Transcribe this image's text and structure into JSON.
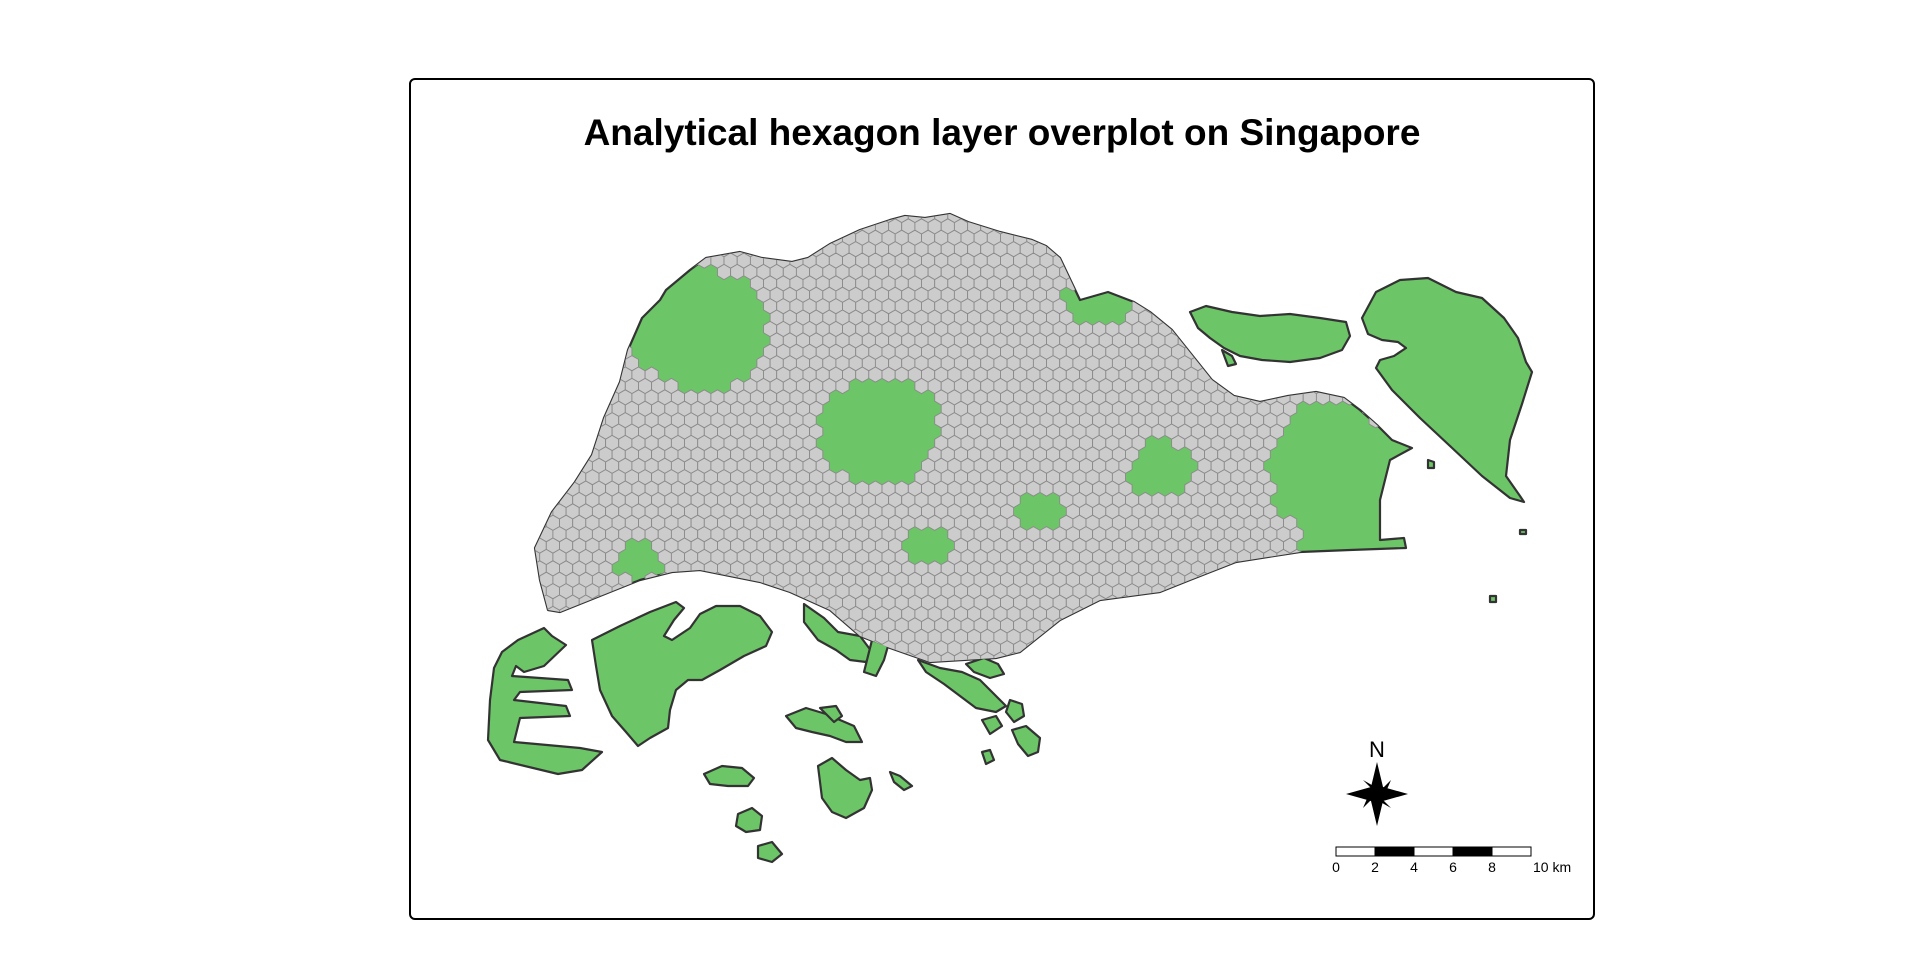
{
  "map": {
    "title": "Analytical hexagon layer overplot on Singapore",
    "colors": {
      "land": "#6cc566",
      "land_border": "#333333",
      "hexagon_fill": "#cccccc",
      "hexagon_border": "#8a8a8a",
      "frame": "#000000"
    },
    "layers": [
      "land-polygons",
      "hexagon-grid"
    ],
    "north_arrow": {
      "label": "N"
    },
    "scale_bar": {
      "labels": [
        "0",
        "2",
        "4",
        "6",
        "8",
        "10 km"
      ],
      "segments": [
        "white",
        "black",
        "white",
        "black",
        "white"
      ]
    }
  }
}
